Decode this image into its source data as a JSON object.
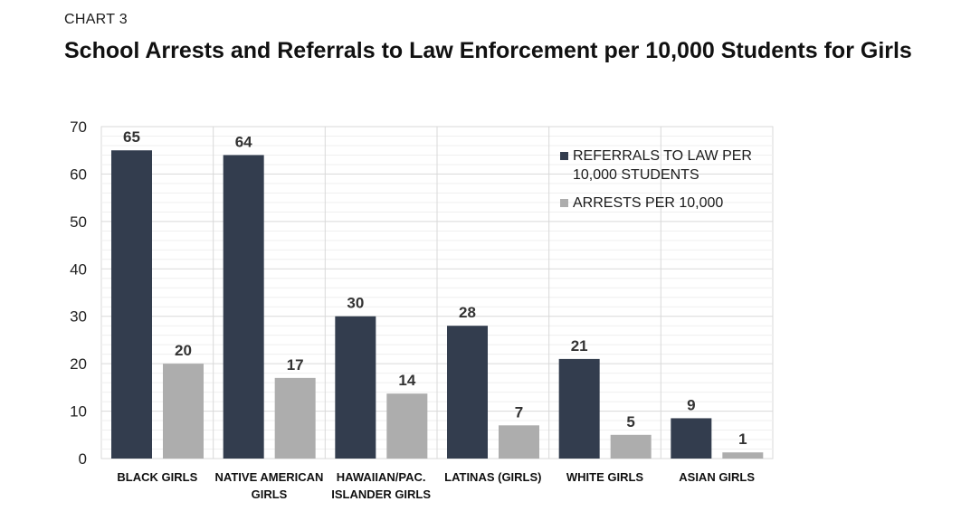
{
  "header": {
    "kicker": "CHART 3",
    "title": "School Arrests and Referrals to Law Enforcement per 10,000 Students for Girls"
  },
  "chart_data": {
    "type": "bar",
    "categories": [
      "BLACK GIRLS",
      "NATIVE AMERICAN GIRLS",
      "HAWAIIAN/PAC. ISLANDER GIRLS",
      "LATINAS (GIRLS)",
      "WHITE GIRLS",
      "ASIAN GIRLS"
    ],
    "category_lines": [
      [
        "BLACK GIRLS"
      ],
      [
        "NATIVE AMERICAN",
        "GIRLS"
      ],
      [
        "HAWAIIAN/PAC.",
        "ISLANDER GIRLS"
      ],
      [
        "LATINAS (GIRLS)"
      ],
      [
        "WHITE GIRLS"
      ],
      [
        "ASIAN GIRLS"
      ]
    ],
    "series": [
      {
        "name": "REFERRALS TO LAW PER 10,000 STUDENTS",
        "legend_lines": [
          "REFERRALS TO LAW PER",
          "10,000 STUDENTS"
        ],
        "color": "#333d4e",
        "values": [
          65,
          64,
          30,
          28,
          21,
          9
        ]
      },
      {
        "name": "ARRESTS PER 10,000",
        "legend_lines": [
          "ARRESTS PER 10,000"
        ],
        "color": "#adadad",
        "values": [
          20,
          17,
          14,
          7,
          5,
          1
        ]
      }
    ],
    "bar_values_plotted": [
      [
        65,
        64,
        30,
        28,
        21,
        8.5
      ],
      [
        20,
        17,
        13.7,
        7,
        5,
        1.3
      ]
    ],
    "ylim": [
      0,
      70
    ],
    "yticks": [
      0,
      10,
      20,
      30,
      40,
      50,
      60,
      70
    ],
    "minor_grid_step": 2,
    "grid": true,
    "legend_position": "top-right",
    "xlabel": "",
    "ylabel": ""
  }
}
